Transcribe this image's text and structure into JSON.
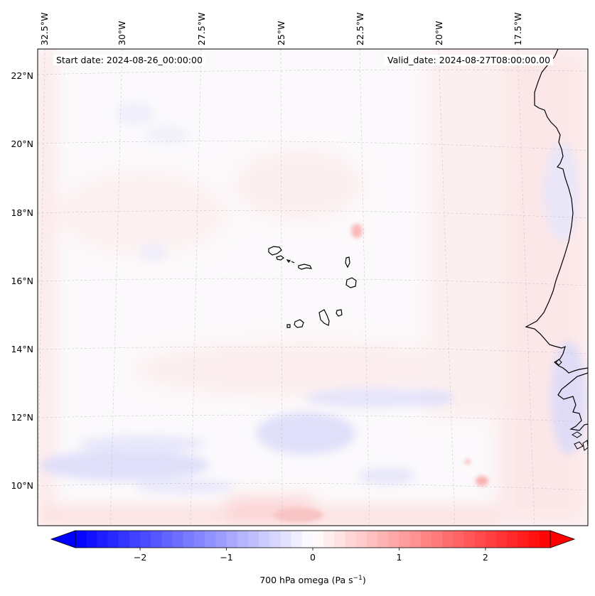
{
  "map": {
    "start_date_text": "Start date: 2024-08-26_00:00:00",
    "valid_date_text": "Valid_date: 2024-08-27T08:00:00.00",
    "lon_labels": [
      "32.5°W",
      "30°W",
      "27.5°W",
      "25°W",
      "22.5°W",
      "20°W",
      "17.5°W"
    ],
    "lat_labels": [
      "22°N",
      "20°N",
      "18°N",
      "16°N",
      "14°N",
      "12°N",
      "10°N"
    ],
    "gridlines": true,
    "coastline_color": "#000000",
    "islands": [
      "Santo Antão",
      "São Vicente",
      "Santa Luzia",
      "São Nicolau",
      "Sal",
      "Boa Vista",
      "Maio",
      "Santiago",
      "Fogo",
      "Brava"
    ]
  },
  "colorbar": {
    "label_prefix": "700 hPa omega (Pa s",
    "label_exp": "−1",
    "label_suffix": ")",
    "tick_labels": [
      "−2",
      "−1",
      "0",
      "1",
      "2"
    ],
    "tick_values": [
      -2,
      -1,
      0,
      1,
      2
    ],
    "range": [
      -2.75,
      2.75
    ],
    "colormap": "bwr",
    "extend": "both",
    "low_color": "#0000ff",
    "mid_color": "#ffffff",
    "high_color": "#ff0000"
  }
}
